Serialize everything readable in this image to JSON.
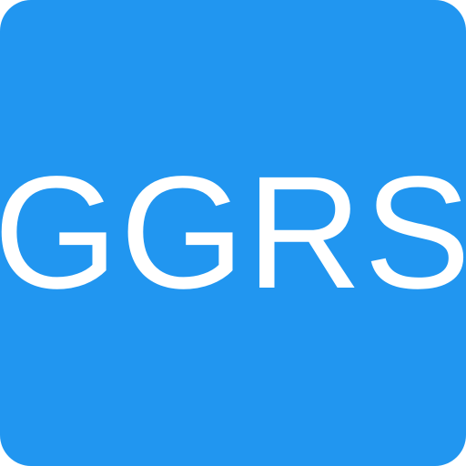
{
  "icon": {
    "label": "GGRS",
    "background_color": "#2196F0",
    "text_color": "#FFFFFF"
  }
}
